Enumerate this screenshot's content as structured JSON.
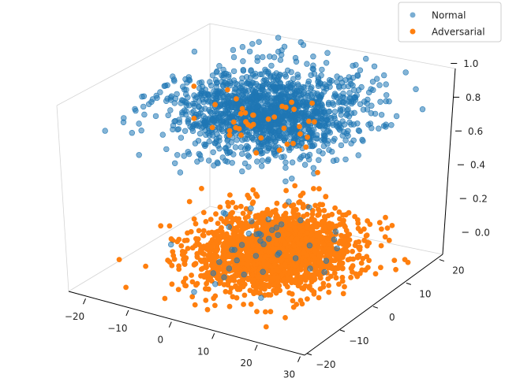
{
  "chart_data": {
    "type": "scatter",
    "projection": "3d",
    "x_ticks": [
      "−20",
      "−10",
      "0",
      "10",
      "20",
      "30"
    ],
    "y_ticks": [
      "−20",
      "−10",
      "0",
      "10",
      "20"
    ],
    "z_ticks": [
      "0.0",
      "0.2",
      "0.4",
      "0.6",
      "0.8",
      "1.0"
    ],
    "xlim": [
      -25,
      30
    ],
    "ylim": [
      -22,
      28
    ],
    "zlim": [
      -0.05,
      1.05
    ],
    "grid": false,
    "legend_position": "top-right",
    "series": [
      {
        "name": "Normal",
        "color": "#1f77b4",
        "alpha": 0.55,
        "description_z": 1.0,
        "points": [
          {
            "x": -10,
            "y": 5,
            "z": 1
          },
          {
            "x": 0,
            "y": 0,
            "z": 1
          },
          {
            "x": 5,
            "y": 10,
            "z": 1
          },
          {
            "x": 15,
            "y": -5,
            "z": 1
          },
          {
            "x": 20,
            "y": 15,
            "z": 1
          },
          {
            "x": -5,
            "y": -10,
            "z": 1
          },
          {
            "x": 10,
            "y": 20,
            "z": 1
          },
          {
            "x": 25,
            "y": 5,
            "z": 1
          },
          {
            "x": -15,
            "y": 0,
            "z": 1
          },
          {
            "x": 8,
            "y": 2,
            "z": 1
          },
          {
            "x": 2,
            "y": 12,
            "z": 1
          },
          {
            "x": 12,
            "y": 8,
            "z": 1
          }
        ]
      },
      {
        "name": "Adversarial",
        "color": "#ff7f0e",
        "alpha": 1.0,
        "description_z": 0.0,
        "points": [
          {
            "x": -10,
            "y": 5,
            "z": 0
          },
          {
            "x": 0,
            "y": 0,
            "z": 0
          },
          {
            "x": 5,
            "y": 10,
            "z": 0
          },
          {
            "x": 15,
            "y": -5,
            "z": 0
          },
          {
            "x": 20,
            "y": 15,
            "z": 0
          },
          {
            "x": -5,
            "y": -10,
            "z": 0
          },
          {
            "x": 10,
            "y": 20,
            "z": 0
          },
          {
            "x": 25,
            "y": 5,
            "z": 0
          },
          {
            "x": -15,
            "y": 0,
            "z": 0
          },
          {
            "x": 8,
            "y": 2,
            "z": 0
          },
          {
            "x": 2,
            "y": 12,
            "z": 0
          },
          {
            "x": 12,
            "y": 8,
            "z": 0
          }
        ]
      }
    ]
  },
  "legend": {
    "items": [
      {
        "label": "Normal",
        "color": "#1f77b4"
      },
      {
        "label": "Adversarial",
        "color": "#ff7f0e"
      }
    ]
  }
}
